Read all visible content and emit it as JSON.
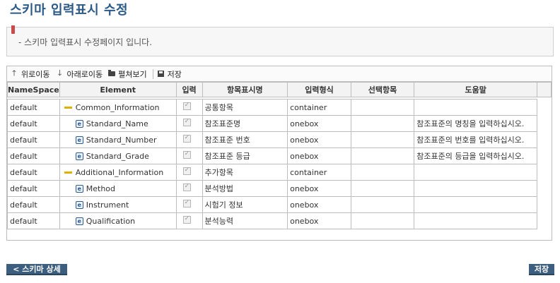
{
  "page": {
    "title": "스키마 입력표시 수정",
    "description": "- 스키마 입력표시 수정페이지 입니다."
  },
  "toolbar": {
    "move_up": "위로이동",
    "move_down": "아래로이동",
    "expand": "펼쳐보기",
    "save": "저장"
  },
  "columns": [
    "NameSpace",
    "Element",
    "입력",
    "항목표시명",
    "입력형식",
    "선택항목",
    "도움말"
  ],
  "rows": [
    {
      "ns": "default",
      "element": "Common_Information",
      "kind": "group",
      "input": true,
      "label": "공통항목",
      "format": "container",
      "choice": "",
      "help": ""
    },
    {
      "ns": "default",
      "element": "Standard_Name",
      "kind": "element",
      "input": true,
      "label": "참조표준명",
      "format": "onebox",
      "choice": "",
      "help": "참조표준의 명칭을 입력하십시오."
    },
    {
      "ns": "default",
      "element": "Standard_Number",
      "kind": "element",
      "input": true,
      "label": "참조표준 번호",
      "format": "onebox",
      "choice": "",
      "help": "참조표준의 번호를 입력하십시오."
    },
    {
      "ns": "default",
      "element": "Standard_Grade",
      "kind": "element",
      "input": true,
      "label": "참조표준 등급",
      "format": "onebox",
      "choice": "",
      "help": "참조표준의 등급을 입력하십시오."
    },
    {
      "ns": "default",
      "element": "Additional_Information",
      "kind": "group",
      "input": true,
      "label": "추가항목",
      "format": "container",
      "choice": "",
      "help": ""
    },
    {
      "ns": "default",
      "element": "Method",
      "kind": "element",
      "input": true,
      "label": "분석방법",
      "format": "onebox",
      "choice": "",
      "help": ""
    },
    {
      "ns": "default",
      "element": "Instrument",
      "kind": "element",
      "input": true,
      "label": "시험기 정보",
      "format": "onebox",
      "choice": "",
      "help": ""
    },
    {
      "ns": "default",
      "element": "Qualification",
      "kind": "element",
      "input": true,
      "label": "분석능력",
      "format": "onebox",
      "choice": "",
      "help": ""
    }
  ],
  "buttons": {
    "back": "< 스키마 상세",
    "save": "저장"
  },
  "colors": {
    "title": "#2b5a87",
    "button": "#3d5f7f",
    "group_marker": "#e0b000"
  }
}
